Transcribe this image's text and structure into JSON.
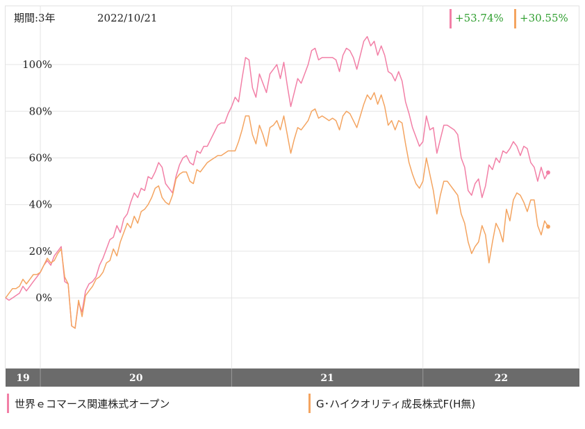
{
  "header": {
    "period_label": "期間:3年",
    "date": "2022/10/21",
    "returns": [
      {
        "value": "+53.74%",
        "color": "#f27fa6"
      },
      {
        "value": "+30.55%",
        "color": "#f4a460"
      }
    ]
  },
  "legend": [
    {
      "name": "世界ｅコマース関連株式オープン",
      "color": "#f27fa6"
    },
    {
      "name": "G･ハイクオリティ成長株式F(H無)",
      "color": "#f4a460"
    }
  ],
  "chart_data": {
    "type": "line",
    "ylim": [
      -30,
      125
    ],
    "yticks": [
      0,
      20,
      40,
      60,
      80,
      100
    ],
    "ytick_labels": [
      "0%",
      "20%",
      "40%",
      "60%",
      "80%",
      "100%"
    ],
    "xlim": [
      0,
      165
    ],
    "year_boundaries": [
      10,
      65,
      120
    ],
    "year_labels": [
      {
        "label": "19",
        "x": 5
      },
      {
        "label": "20",
        "x": 37.5
      },
      {
        "label": "21",
        "x": 92.5
      },
      {
        "label": "22",
        "x": 142.5
      }
    ],
    "grid": true,
    "series": [
      {
        "name": "世界ｅコマース関連株式オープン",
        "color": "#f27fa6",
        "points": [
          [
            0,
            0
          ],
          [
            1,
            -1
          ],
          [
            2,
            0
          ],
          [
            3,
            1
          ],
          [
            4,
            2
          ],
          [
            5,
            5
          ],
          [
            6,
            3
          ],
          [
            7,
            5
          ],
          [
            8,
            7
          ],
          [
            9,
            9
          ],
          [
            10,
            11
          ],
          [
            11,
            14
          ],
          [
            12,
            16
          ],
          [
            13,
            14
          ],
          [
            14,
            18
          ],
          [
            15,
            20
          ],
          [
            16,
            22
          ],
          [
            17,
            7
          ],
          [
            18,
            6
          ],
          [
            19,
            -12
          ],
          [
            20,
            -13
          ],
          [
            21,
            -2
          ],
          [
            22,
            -6
          ],
          [
            23,
            3
          ],
          [
            24,
            6
          ],
          [
            25,
            7
          ],
          [
            26,
            9
          ],
          [
            27,
            14
          ],
          [
            28,
            17
          ],
          [
            29,
            21
          ],
          [
            30,
            25
          ],
          [
            31,
            26
          ],
          [
            32,
            31
          ],
          [
            33,
            28
          ],
          [
            34,
            34
          ],
          [
            35,
            36
          ],
          [
            36,
            41
          ],
          [
            37,
            45
          ],
          [
            38,
            43
          ],
          [
            39,
            47
          ],
          [
            40,
            46
          ],
          [
            41,
            52
          ],
          [
            42,
            51
          ],
          [
            43,
            54
          ],
          [
            44,
            58
          ],
          [
            45,
            56
          ],
          [
            46,
            49
          ],
          [
            47,
            47
          ],
          [
            48,
            45
          ],
          [
            49,
            52
          ],
          [
            50,
            57
          ],
          [
            51,
            60
          ],
          [
            52,
            61
          ],
          [
            53,
            58
          ],
          [
            54,
            57
          ],
          [
            55,
            63
          ],
          [
            56,
            62
          ],
          [
            57,
            65
          ],
          [
            58,
            65
          ],
          [
            59,
            68
          ],
          [
            60,
            71
          ],
          [
            61,
            74
          ],
          [
            62,
            75
          ],
          [
            63,
            75
          ],
          [
            64,
            79
          ],
          [
            65,
            82
          ],
          [
            66,
            86
          ],
          [
            67,
            84
          ],
          [
            68,
            94
          ],
          [
            69,
            103
          ],
          [
            70,
            102
          ],
          [
            71,
            90
          ],
          [
            72,
            86
          ],
          [
            73,
            96
          ],
          [
            74,
            92
          ],
          [
            75,
            88
          ],
          [
            76,
            96
          ],
          [
            77,
            98
          ],
          [
            78,
            100
          ],
          [
            79,
            94
          ],
          [
            80,
            101
          ],
          [
            81,
            91
          ],
          [
            82,
            82
          ],
          [
            83,
            88
          ],
          [
            84,
            94
          ],
          [
            85,
            92
          ],
          [
            86,
            96
          ],
          [
            87,
            100
          ],
          [
            88,
            106
          ],
          [
            89,
            107
          ],
          [
            90,
            102
          ],
          [
            91,
            103
          ],
          [
            92,
            103
          ],
          [
            93,
            103
          ],
          [
            94,
            103
          ],
          [
            95,
            102
          ],
          [
            96,
            97
          ],
          [
            97,
            104
          ],
          [
            98,
            107
          ],
          [
            99,
            106
          ],
          [
            100,
            103
          ],
          [
            101,
            98
          ],
          [
            102,
            104
          ],
          [
            103,
            110
          ],
          [
            104,
            112
          ],
          [
            105,
            108
          ],
          [
            106,
            110
          ],
          [
            107,
            104
          ],
          [
            108,
            108
          ],
          [
            109,
            104
          ],
          [
            110,
            97
          ],
          [
            111,
            96
          ],
          [
            112,
            93
          ],
          [
            113,
            97
          ],
          [
            114,
            93
          ],
          [
            115,
            84
          ],
          [
            116,
            79
          ],
          [
            117,
            73
          ],
          [
            118,
            69
          ],
          [
            119,
            65
          ],
          [
            120,
            67
          ],
          [
            121,
            78
          ],
          [
            122,
            72
          ],
          [
            123,
            73
          ],
          [
            124,
            62
          ],
          [
            125,
            68
          ],
          [
            126,
            74
          ],
          [
            127,
            74
          ],
          [
            128,
            73
          ],
          [
            129,
            72
          ],
          [
            130,
            70
          ],
          [
            131,
            60
          ],
          [
            132,
            56
          ],
          [
            133,
            46
          ],
          [
            134,
            44
          ],
          [
            135,
            49
          ],
          [
            136,
            51
          ],
          [
            137,
            43
          ],
          [
            138,
            48
          ],
          [
            139,
            57
          ],
          [
            140,
            55
          ],
          [
            141,
            60
          ],
          [
            142,
            58
          ],
          [
            143,
            63
          ],
          [
            144,
            62
          ],
          [
            145,
            64
          ],
          [
            146,
            67
          ],
          [
            147,
            65
          ],
          [
            148,
            61
          ],
          [
            149,
            65
          ],
          [
            150,
            64
          ],
          [
            151,
            58
          ],
          [
            152,
            56
          ],
          [
            153,
            50
          ],
          [
            154,
            56
          ],
          [
            155,
            51
          ],
          [
            156,
            53.74
          ]
        ]
      },
      {
        "name": "G･ハイクオリティ成長株式F(H無)",
        "color": "#f4a460",
        "points": [
          [
            0,
            0
          ],
          [
            1,
            2
          ],
          [
            2,
            4
          ],
          [
            3,
            4
          ],
          [
            4,
            5
          ],
          [
            5,
            8
          ],
          [
            6,
            6
          ],
          [
            7,
            8
          ],
          [
            8,
            10
          ],
          [
            9,
            10
          ],
          [
            10,
            11
          ],
          [
            11,
            14
          ],
          [
            12,
            17
          ],
          [
            13,
            15
          ],
          [
            14,
            16
          ],
          [
            15,
            19
          ],
          [
            16,
            21
          ],
          [
            17,
            9
          ],
          [
            18,
            6
          ],
          [
            19,
            -12
          ],
          [
            20,
            -13
          ],
          [
            21,
            -1
          ],
          [
            22,
            -8
          ],
          [
            23,
            1
          ],
          [
            24,
            3
          ],
          [
            25,
            5
          ],
          [
            26,
            8
          ],
          [
            27,
            9
          ],
          [
            28,
            11
          ],
          [
            29,
            15
          ],
          [
            30,
            16
          ],
          [
            31,
            21
          ],
          [
            32,
            18
          ],
          [
            33,
            24
          ],
          [
            34,
            28
          ],
          [
            35,
            32
          ],
          [
            36,
            30
          ],
          [
            37,
            35
          ],
          [
            38,
            32
          ],
          [
            39,
            37
          ],
          [
            40,
            38
          ],
          [
            41,
            40
          ],
          [
            42,
            43
          ],
          [
            43,
            47
          ],
          [
            44,
            48
          ],
          [
            45,
            43
          ],
          [
            46,
            41
          ],
          [
            47,
            40
          ],
          [
            48,
            44
          ],
          [
            49,
            51
          ],
          [
            50,
            53
          ],
          [
            51,
            54
          ],
          [
            52,
            54
          ],
          [
            53,
            50
          ],
          [
            54,
            49
          ],
          [
            55,
            55
          ],
          [
            56,
            54
          ],
          [
            57,
            56
          ],
          [
            58,
            58
          ],
          [
            59,
            59
          ],
          [
            60,
            60
          ],
          [
            61,
            61
          ],
          [
            62,
            61
          ],
          [
            63,
            62
          ],
          [
            64,
            63
          ],
          [
            65,
            63
          ],
          [
            66,
            63
          ],
          [
            67,
            67
          ],
          [
            68,
            72
          ],
          [
            69,
            78
          ],
          [
            70,
            78
          ],
          [
            71,
            70
          ],
          [
            72,
            66
          ],
          [
            73,
            74
          ],
          [
            74,
            70
          ],
          [
            75,
            65
          ],
          [
            76,
            73
          ],
          [
            77,
            74
          ],
          [
            78,
            76
          ],
          [
            79,
            72
          ],
          [
            80,
            78
          ],
          [
            81,
            70
          ],
          [
            82,
            62
          ],
          [
            83,
            68
          ],
          [
            84,
            73
          ],
          [
            85,
            72
          ],
          [
            86,
            74
          ],
          [
            87,
            76
          ],
          [
            88,
            80
          ],
          [
            89,
            81
          ],
          [
            90,
            77
          ],
          [
            91,
            78
          ],
          [
            92,
            77
          ],
          [
            93,
            76
          ],
          [
            94,
            77
          ],
          [
            95,
            76
          ],
          [
            96,
            72
          ],
          [
            97,
            78
          ],
          [
            98,
            80
          ],
          [
            99,
            79
          ],
          [
            100,
            76
          ],
          [
            101,
            73
          ],
          [
            102,
            78
          ],
          [
            103,
            83
          ],
          [
            104,
            87
          ],
          [
            105,
            85
          ],
          [
            106,
            88
          ],
          [
            107,
            83
          ],
          [
            108,
            87
          ],
          [
            109,
            82
          ],
          [
            110,
            74
          ],
          [
            111,
            76
          ],
          [
            112,
            72
          ],
          [
            113,
            76
          ],
          [
            114,
            75
          ],
          [
            115,
            66
          ],
          [
            116,
            58
          ],
          [
            117,
            53
          ],
          [
            118,
            49
          ],
          [
            119,
            47
          ],
          [
            120,
            50
          ],
          [
            121,
            60
          ],
          [
            122,
            53
          ],
          [
            123,
            46
          ],
          [
            124,
            36
          ],
          [
            125,
            44
          ],
          [
            126,
            50
          ],
          [
            127,
            50
          ],
          [
            128,
            48
          ],
          [
            129,
            46
          ],
          [
            130,
            44
          ],
          [
            131,
            36
          ],
          [
            132,
            32
          ],
          [
            133,
            24
          ],
          [
            134,
            19
          ],
          [
            135,
            22
          ],
          [
            136,
            24
          ],
          [
            137,
            31
          ],
          [
            138,
            27
          ],
          [
            139,
            15
          ],
          [
            140,
            24
          ],
          [
            141,
            32
          ],
          [
            142,
            29
          ],
          [
            143,
            24
          ],
          [
            144,
            38
          ],
          [
            145,
            33
          ],
          [
            146,
            42
          ],
          [
            147,
            45
          ],
          [
            148,
            44
          ],
          [
            149,
            41
          ],
          [
            150,
            37
          ],
          [
            151,
            42
          ],
          [
            152,
            42
          ],
          [
            153,
            31
          ],
          [
            154,
            27
          ],
          [
            155,
            33
          ],
          [
            156,
            30.55
          ]
        ]
      }
    ]
  }
}
